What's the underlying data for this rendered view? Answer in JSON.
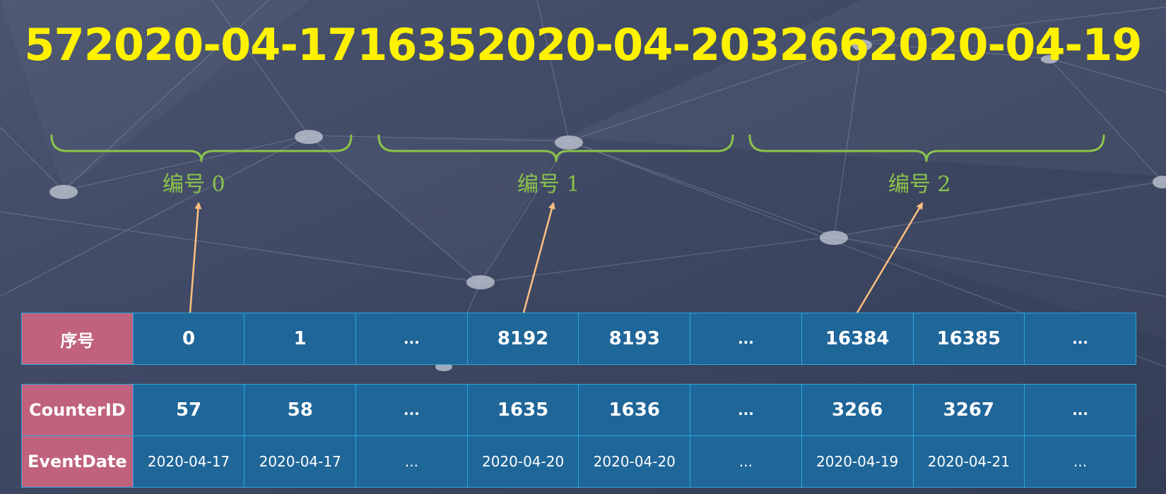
{
  "title": "572020-04-1716352020-04-2032662020-04-19",
  "brace_labels": [
    "编号 0",
    "编号 1",
    "编号 2"
  ],
  "index_row": {
    "header": "序号",
    "cells": [
      "0",
      "1",
      "...",
      "8192",
      "8193",
      "...",
      "16384",
      "16385",
      "..."
    ]
  },
  "data_rows": [
    {
      "header": "CounterID",
      "cells": [
        "57",
        "58",
        "...",
        "1635",
        "1636",
        "...",
        "3266",
        "3267",
        "..."
      ]
    },
    {
      "header": "EventDate",
      "cells": [
        "2020-04-17",
        "2020-04-17",
        "...",
        "2020-04-20",
        "2020-04-20",
        "...",
        "2020-04-19",
        "2020-04-21",
        "..."
      ]
    }
  ],
  "colors": {
    "title": "#fff200",
    "brace": "#8bc34a",
    "arrow": "#ffbf80",
    "header_cell": "#c0627d",
    "data_cell": "#1f6699",
    "cell_border": "#2ea7de",
    "background": "#3c4660"
  }
}
